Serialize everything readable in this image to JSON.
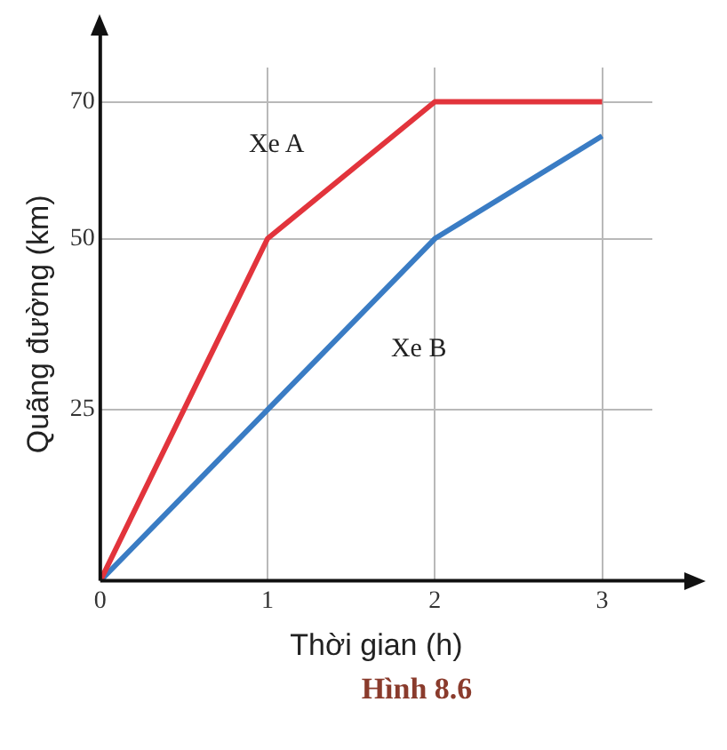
{
  "chart_data": {
    "type": "line",
    "xlabel": "Thời gian (h)",
    "ylabel": "Quãng đường (km)",
    "annotations": [
      "Hình 8.6"
    ],
    "x": [
      0,
      1,
      2,
      3
    ],
    "xlim": [
      0,
      3.3
    ],
    "xticks": [
      0,
      1,
      2,
      3
    ],
    "ylim": [
      0,
      75
    ],
    "yticks": [
      25,
      50,
      70
    ],
    "grid": true,
    "legend": false,
    "marker": "none",
    "line_style": "solid",
    "series": [
      {
        "name": "Xe A",
        "color": "#e2343c",
        "values": [
          0,
          50,
          70,
          70
        ]
      },
      {
        "name": "Xe B",
        "color": "#3a7cc4",
        "values": [
          0,
          25,
          50,
          65
        ]
      }
    ]
  }
}
